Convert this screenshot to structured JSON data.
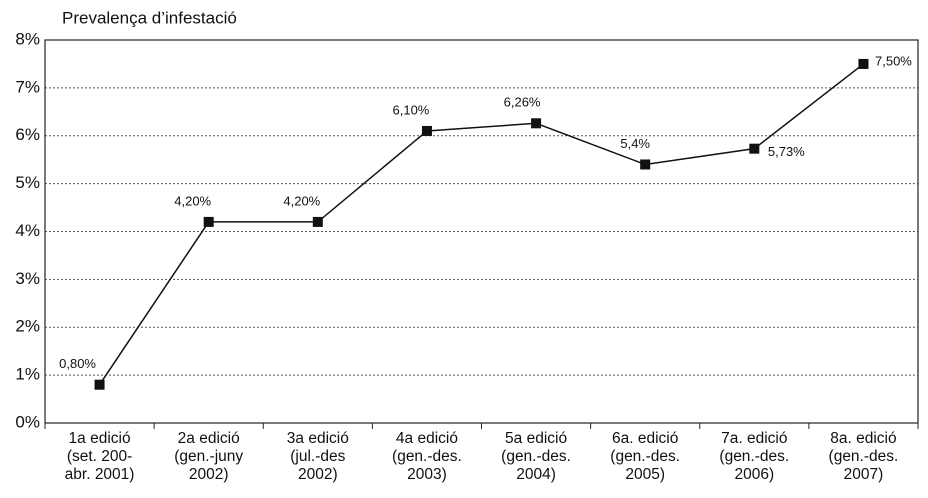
{
  "chart_data": {
    "type": "line",
    "title": "Prevalença d’infestació",
    "categories": [
      [
        "1a edició",
        "(set. 200-",
        "abr. 2001)"
      ],
      [
        "2a edició",
        "(gen.-juny",
        "2002)"
      ],
      [
        "3a edició",
        "(jul.-des",
        "2002)"
      ],
      [
        "4a edició",
        "(gen.-des.",
        "2003)"
      ],
      [
        "5a edició",
        "(gen.-des.",
        "2004)"
      ],
      [
        "6a. edició",
        "(gen.-des.",
        "2005)"
      ],
      [
        "7a. edició",
        "(gen.-des.",
        "2006)"
      ],
      [
        "8a. edició",
        "(gen.-des.",
        "2007)"
      ]
    ],
    "values": [
      0.8,
      4.2,
      4.2,
      6.1,
      6.26,
      5.4,
      5.73,
      7.5
    ],
    "value_labels": [
      "0,80%",
      "4,20%",
      "4,20%",
      "6,10%",
      "6,26%",
      "5,4%",
      "5,73%",
      "7,50%"
    ],
    "color": "#111111",
    "ylim": [
      0,
      8
    ],
    "yticks": [
      {
        "value": 0,
        "label": "0%"
      },
      {
        "value": 1,
        "label": "1%"
      },
      {
        "value": 2,
        "label": "2%"
      },
      {
        "value": 3,
        "label": "3%"
      },
      {
        "value": 4,
        "label": "4%"
      },
      {
        "value": 5,
        "label": "5%"
      },
      {
        "value": 6,
        "label": "6%"
      },
      {
        "value": 7,
        "label": "7%"
      },
      {
        "value": 8,
        "label": "8%"
      }
    ],
    "grid": true
  }
}
